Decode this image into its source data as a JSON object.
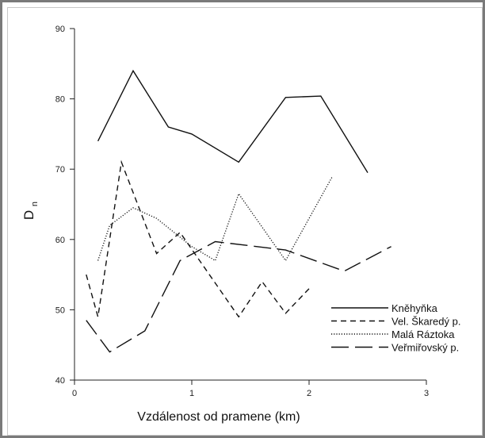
{
  "chart_data": {
    "type": "line",
    "title": "",
    "xlabel": "Vzdálenost od pramene (km)",
    "ylabel_main": "D",
    "ylabel_sub": "n",
    "xlim": [
      0,
      3
    ],
    "ylim": [
      40,
      90
    ],
    "xticks": [
      0,
      1,
      2,
      3
    ],
    "yticks": [
      40,
      50,
      60,
      70,
      80,
      90
    ],
    "grid": false,
    "legend_position": "bottom-right",
    "series": [
      {
        "name": "Kněhyňka",
        "dash": "solid",
        "x": [
          0.2,
          0.5,
          0.8,
          1.0,
          1.4,
          1.8,
          2.1,
          2.5
        ],
        "y": [
          74,
          84,
          76,
          75,
          71,
          80.2,
          80.4,
          69.5
        ]
      },
      {
        "name": "Vel. Škaredý p.",
        "dash": "dashed",
        "x": [
          0.1,
          0.2,
          0.4,
          0.7,
          0.9,
          1.4,
          1.6,
          1.8,
          2.0
        ],
        "y": [
          55,
          49,
          71,
          58,
          61,
          49,
          54,
          49.5,
          53
        ]
      },
      {
        "name": "Malá Ráztoka",
        "dash": "dotted",
        "x": [
          0.2,
          0.3,
          0.5,
          0.7,
          1.0,
          1.2,
          1.4,
          1.8,
          2.2
        ],
        "y": [
          57,
          62,
          64.5,
          63,
          59,
          57,
          66.5,
          57,
          69
        ]
      },
      {
        "name": "Veřmiřovský p.",
        "dash": "longdash",
        "x": [
          0.1,
          0.3,
          0.6,
          0.9,
          1.2,
          1.8,
          2.3,
          2.7
        ],
        "y": [
          48.5,
          44,
          47,
          57,
          59.7,
          58.5,
          55.5,
          59
        ]
      }
    ]
  },
  "colors": {
    "line": "#111111",
    "axis": "#222222",
    "frame": "#7a7a7a"
  }
}
